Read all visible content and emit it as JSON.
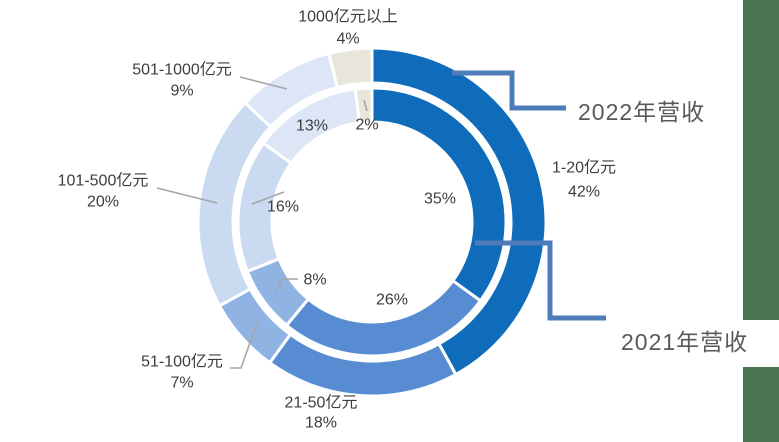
{
  "chart_data": {
    "type": "pie",
    "subtype": "nested-donut-two-rings",
    "categories": [
      "1-20亿元",
      "21-50亿元",
      "51-100亿元",
      "101-500亿元",
      "501-1000亿元",
      "1000亿元以上"
    ],
    "series": [
      {
        "name": "2022年营收",
        "ring": "outer",
        "values": [
          42,
          18,
          7,
          20,
          9,
          4
        ]
      },
      {
        "name": "2021年营收",
        "ring": "inner",
        "values": [
          35,
          26,
          8,
          16,
          13,
          2
        ]
      }
    ],
    "unit": "%",
    "colors": [
      "#0f6cba",
      "#578cd3",
      "#8fb3e2",
      "#c9daf1",
      "#dce6f6",
      "#e9e7dc"
    ],
    "outer_percent_labels": [
      "42%",
      "18%",
      "7%",
      "20%",
      "9%",
      "4%"
    ],
    "inner_percent_labels": [
      "35%",
      "26%",
      "8%",
      "16%",
      "13%",
      "2%"
    ],
    "legend_position": "callout-brackets-right",
    "grid": false
  },
  "style": {
    "label_color": "#3d3d3d",
    "year_label_color": "#595959",
    "leader_line_color": "#a6a6a6",
    "callout_color": "#4d7cb8",
    "slice_border_color": "#ffffff",
    "background": "#ffffff"
  },
  "decor": {
    "sidebar_color": "#4a7551"
  }
}
